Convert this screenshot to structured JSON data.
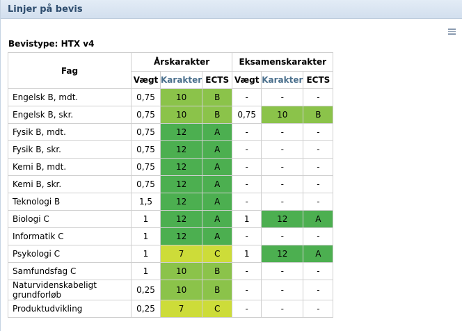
{
  "panel": {
    "title": "Linjer på bevis"
  },
  "bevistype": "Bevistype: HTX v4",
  "colors": {
    "grade_12": "#4caf50",
    "grade_10": "#8bc34a",
    "grade_7": "#cddc39",
    "header_title": "#2e4d6e"
  },
  "table": {
    "headers": {
      "fag": "Fag",
      "aars": "Årskarakter",
      "eksamen": "Eksamenskarakter",
      "vaegt": "Vægt",
      "karakter": "Karakter",
      "ects": "ECTS"
    },
    "rows": [
      {
        "fag": "Engelsk B, mdt.",
        "a_vaegt": "0,75",
        "a_kar": "10",
        "a_ects": "B",
        "e_vaegt": "-",
        "e_kar": "-",
        "e_ects": "-"
      },
      {
        "fag": "Engelsk B, skr.",
        "a_vaegt": "0,75",
        "a_kar": "10",
        "a_ects": "B",
        "e_vaegt": "0,75",
        "e_kar": "10",
        "e_ects": "B"
      },
      {
        "fag": "Fysik B, mdt.",
        "a_vaegt": "0,75",
        "a_kar": "12",
        "a_ects": "A",
        "e_vaegt": "-",
        "e_kar": "-",
        "e_ects": "-"
      },
      {
        "fag": "Fysik B, skr.",
        "a_vaegt": "0,75",
        "a_kar": "12",
        "a_ects": "A",
        "e_vaegt": "-",
        "e_kar": "-",
        "e_ects": "-"
      },
      {
        "fag": "Kemi B, mdt.",
        "a_vaegt": "0,75",
        "a_kar": "12",
        "a_ects": "A",
        "e_vaegt": "-",
        "e_kar": "-",
        "e_ects": "-"
      },
      {
        "fag": "Kemi B, skr.",
        "a_vaegt": "0,75",
        "a_kar": "12",
        "a_ects": "A",
        "e_vaegt": "-",
        "e_kar": "-",
        "e_ects": "-"
      },
      {
        "fag": "Teknologi B",
        "a_vaegt": "1,5",
        "a_kar": "12",
        "a_ects": "A",
        "e_vaegt": "-",
        "e_kar": "-",
        "e_ects": "-"
      },
      {
        "fag": "Biologi C",
        "a_vaegt": "1",
        "a_kar": "12",
        "a_ects": "A",
        "e_vaegt": "1",
        "e_kar": "12",
        "e_ects": "A"
      },
      {
        "fag": "Informatik C",
        "a_vaegt": "1",
        "a_kar": "12",
        "a_ects": "A",
        "e_vaegt": "-",
        "e_kar": "-",
        "e_ects": "-"
      },
      {
        "fag": "Psykologi C",
        "a_vaegt": "1",
        "a_kar": "7",
        "a_ects": "C",
        "e_vaegt": "1",
        "e_kar": "12",
        "e_ects": "A"
      },
      {
        "fag": "Samfundsfag C",
        "a_vaegt": "1",
        "a_kar": "10",
        "a_ects": "B",
        "e_vaegt": "-",
        "e_kar": "-",
        "e_ects": "-"
      },
      {
        "fag": "Naturvidenskabeligt grundforløb",
        "a_vaegt": "0,25",
        "a_kar": "10",
        "a_ects": "B",
        "e_vaegt": "-",
        "e_kar": "-",
        "e_ects": "-"
      },
      {
        "fag": "Produktudvikling",
        "a_vaegt": "0,25",
        "a_kar": "7",
        "a_ects": "C",
        "e_vaegt": "-",
        "e_kar": "-",
        "e_ects": "-"
      }
    ]
  }
}
